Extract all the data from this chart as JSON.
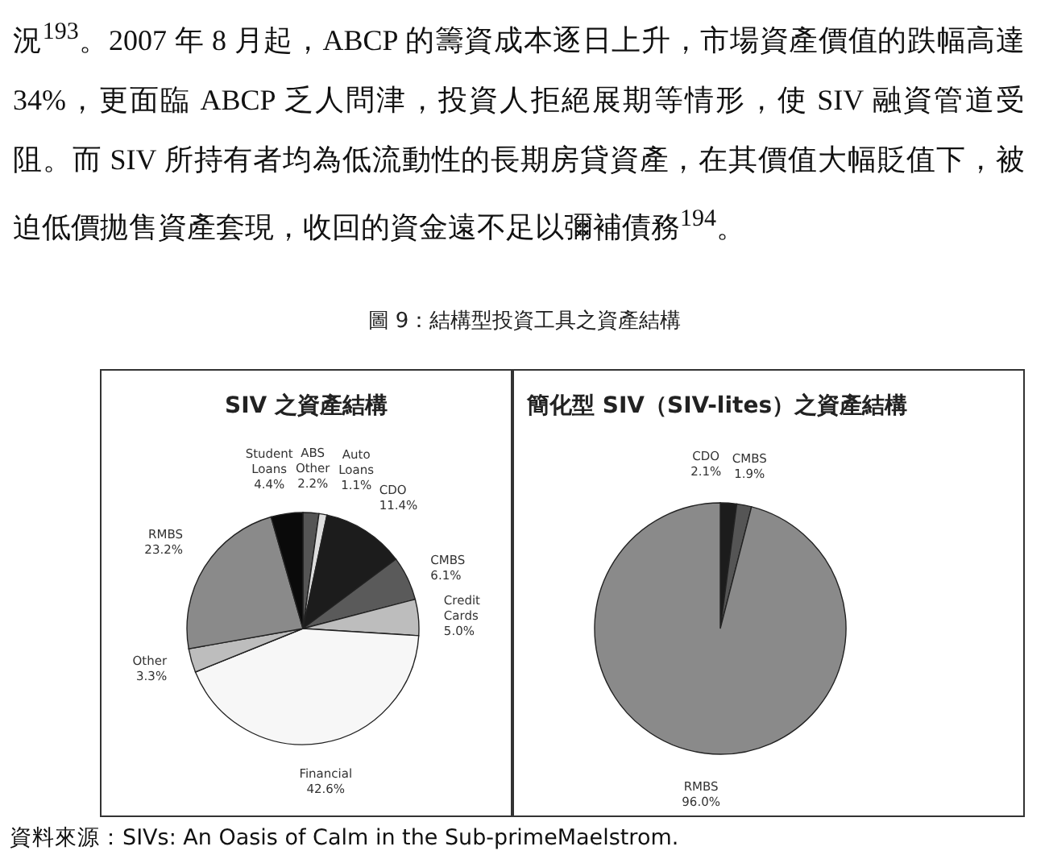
{
  "chart_data": [
    {
      "type": "pie",
      "title": "SIV 之資產結構",
      "categories": [
        "ABS Other",
        "Auto Loans",
        "CDO",
        "CMBS",
        "Credit Cards",
        "Financial",
        "Other",
        "RMBS",
        "Student Loans"
      ],
      "values": [
        2.2,
        1.1,
        11.4,
        6.1,
        5.0,
        42.6,
        3.3,
        23.2,
        4.4
      ],
      "value_labels": [
        "2.2%",
        "1.1%",
        "11.4%",
        "6.1%",
        "5.0%",
        "42.6%",
        "3.3%",
        "23.2%",
        "4.4%"
      ],
      "colors": [
        "#555555",
        "#dddddd",
        "#1c1c1c",
        "#5a5a5a",
        "#bdbdbd",
        "#f7f7f7",
        "#bdbdbd",
        "#8a8a8a",
        "#0a0a0a"
      ],
      "annotations": [
        "況$^{193}$。2007 年 8 月起，ABCP 的籌資成本逐日上升，市場資產價值的跌幅高達 34%，更面臨 ABCP 乏人問津，投資人拒絕展期等情形，使 SIV 融資管道受阻。而 SIV 所持有者均為低流動性的長期房貸資產，在其價值大幅貶值下，被迫低價拋售資產套現，收回的資金遠不足以彌補債務$^{194}$。",
        "圖 9：結構型投資工具之資產結構"
      ]
    },
    {
      "type": "pie",
      "title": "簡化型 SIV（SIV-lites）之資產結構",
      "categories": [
        "CDO",
        "CMBS",
        "RMBS"
      ],
      "values": [
        2.1,
        1.9,
        96.0
      ],
      "value_labels": [
        "2.1%",
        "1.9%",
        "96.0%"
      ],
      "colors": [
        "#1c1c1c",
        "#555555",
        "#8a8a8a"
      ],
      "annotations": [
        "資料來源：SIVs: An Oasis of Calm in the Sub-primeMaelstrom."
      ]
    }
  ]
}
